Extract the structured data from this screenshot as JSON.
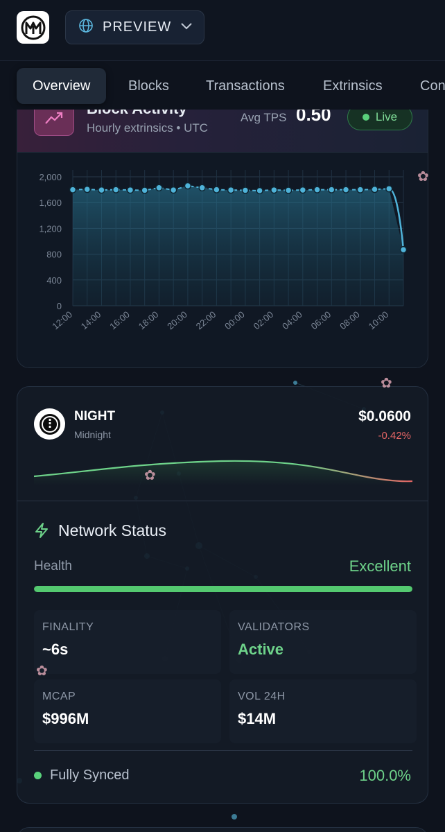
{
  "header": {
    "logo_icon": "midnight-logo-icon",
    "env_button": {
      "icon": "globe-icon",
      "label": "PREVIEW",
      "chevron": "chevron-down-icon"
    }
  },
  "tabs": [
    {
      "label": "Overview",
      "active": true
    },
    {
      "label": "Blocks",
      "active": false
    },
    {
      "label": "Transactions",
      "active": false
    },
    {
      "label": "Extrinsics",
      "active": false
    },
    {
      "label": "Con",
      "active": false
    }
  ],
  "block_activity": {
    "icon": "trending-up-icon",
    "title": "Block Activity",
    "subtitle": "Hourly extrinsics • UTC",
    "tps_label": "Avg TPS",
    "tps_value": "0.50",
    "live_label": "Live",
    "chart_data": {
      "type": "area",
      "x": [
        "12:00",
        "13:00",
        "14:00",
        "15:00",
        "16:00",
        "17:00",
        "18:00",
        "19:00",
        "20:00",
        "21:00",
        "22:00",
        "23:00",
        "00:00",
        "01:00",
        "02:00",
        "03:00",
        "04:00",
        "05:00",
        "06:00",
        "07:00",
        "08:00",
        "09:00",
        "10:00",
        "11:00"
      ],
      "x_tick_labels": [
        "12:00",
        "14:00",
        "16:00",
        "18:00",
        "20:00",
        "22:00",
        "00:00",
        "02:00",
        "04:00",
        "06:00",
        "08:00",
        "10:00"
      ],
      "values": [
        1800,
        1805,
        1795,
        1800,
        1795,
        1790,
        1830,
        1795,
        1860,
        1830,
        1800,
        1795,
        1790,
        1785,
        1795,
        1790,
        1795,
        1800,
        1800,
        1800,
        1800,
        1805,
        1815,
        870
      ],
      "yticks": [
        0,
        400,
        800,
        1200,
        1600,
        2000
      ],
      "ytick_labels": [
        "0",
        "400",
        "800",
        "1,200",
        "1,600",
        "2,000"
      ],
      "ylim": [
        0,
        2000
      ],
      "grid": true,
      "color": "#4fb3d9"
    }
  },
  "token": {
    "logo_icon": "night-token-icon",
    "symbol": "NIGHT",
    "name": "Midnight",
    "price": "$0.0600",
    "change": "-0.42%",
    "up_color": "#6ed38a",
    "down_color": "#e26464"
  },
  "network": {
    "icon": "lightning-icon",
    "title": "Network Status",
    "health_label": "Health",
    "health_value": "Excellent",
    "health_fraction": 1.0,
    "stats": [
      {
        "label": "FINALITY",
        "value": "~6s",
        "highlight": false
      },
      {
        "label": "VALIDATORS",
        "value": "Active",
        "highlight": true
      },
      {
        "label": "MCAP",
        "value": "$996M",
        "highlight": false
      },
      {
        "label": "VOL 24H",
        "value": "$14M",
        "highlight": false
      }
    ],
    "sync_label": "Fully Synced",
    "sync_value": "100.0%"
  },
  "colors": {
    "accent": "#4fb3d9",
    "success": "#6ed38a",
    "danger": "#e26464",
    "background": "#0e131d"
  }
}
